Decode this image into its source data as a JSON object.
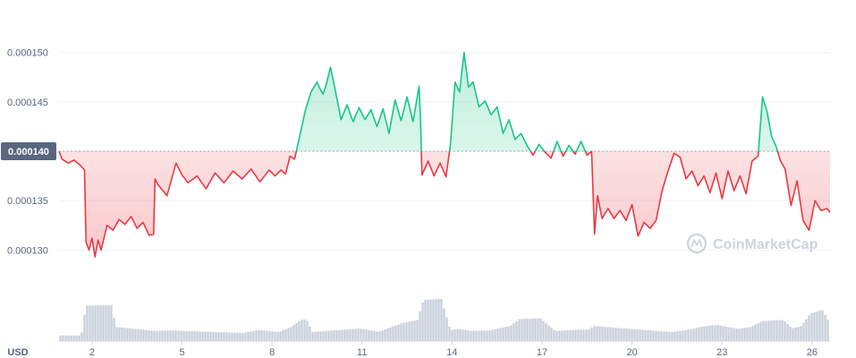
{
  "chart_data": {
    "type": "area",
    "title": "",
    "xlabel": "",
    "ylabel": "",
    "currency_label": "USD",
    "watermark": "CoinMarketCap",
    "reference_price": 0.00014,
    "reference_label": "0.000140",
    "ylim": [
      0.0001265,
      0.0001535
    ],
    "yticks": [
      {
        "value": 0.00013,
        "label": "0.000130"
      },
      {
        "value": 0.000135,
        "label": "0.000135"
      },
      {
        "value": 0.00014,
        "label": "0.000140"
      },
      {
        "value": 0.000145,
        "label": "0.000145"
      },
      {
        "value": 0.00015,
        "label": "0.000150"
      }
    ],
    "xlim": [
      0.9,
      26.6
    ],
    "xticks": [
      {
        "value": 2,
        "label": "2"
      },
      {
        "value": 5,
        "label": "5"
      },
      {
        "value": 8,
        "label": "8"
      },
      {
        "value": 11,
        "label": "11"
      },
      {
        "value": 14,
        "label": "14"
      },
      {
        "value": 17,
        "label": "17"
      },
      {
        "value": 20,
        "label": "20"
      },
      {
        "value": 23,
        "label": "23"
      },
      {
        "value": 26,
        "label": "26"
      }
    ],
    "colors": {
      "up": "#16c784",
      "down": "#ea3943"
    },
    "price_series": {
      "name": "Price",
      "x": [
        0.9,
        1.0,
        1.2,
        1.4,
        1.6,
        1.75,
        1.8,
        1.9,
        2.0,
        2.1,
        2.2,
        2.3,
        2.5,
        2.7,
        2.9,
        3.1,
        3.3,
        3.5,
        3.7,
        3.9,
        4.05,
        4.1,
        4.2,
        4.5,
        4.8,
        5.0,
        5.2,
        5.5,
        5.8,
        6.1,
        6.4,
        6.7,
        7.0,
        7.3,
        7.6,
        7.9,
        8.1,
        8.3,
        8.45,
        8.6,
        8.75,
        8.9,
        9.1,
        9.3,
        9.5,
        9.6,
        9.7,
        9.8,
        9.95,
        10.1,
        10.3,
        10.5,
        10.7,
        10.9,
        11.1,
        11.3,
        11.5,
        11.7,
        11.9,
        12.1,
        12.3,
        12.5,
        12.7,
        12.9,
        12.95,
        13.0,
        13.2,
        13.4,
        13.6,
        13.8,
        13.95,
        14.1,
        14.25,
        14.4,
        14.55,
        14.7,
        14.9,
        15.1,
        15.3,
        15.5,
        15.7,
        15.9,
        16.1,
        16.3,
        16.5,
        16.7,
        16.9,
        17.1,
        17.3,
        17.5,
        17.7,
        17.9,
        18.1,
        18.3,
        18.5,
        18.65,
        18.75,
        18.85,
        19.0,
        19.2,
        19.4,
        19.6,
        19.8,
        20.0,
        20.2,
        20.4,
        20.6,
        20.8,
        21.0,
        21.2,
        21.4,
        21.6,
        21.8,
        22.0,
        22.2,
        22.4,
        22.6,
        22.8,
        23.0,
        23.2,
        23.4,
        23.6,
        23.8,
        24.0,
        24.2,
        24.35,
        24.5,
        24.65,
        24.8,
        24.95,
        25.1,
        25.3,
        25.5,
        25.7,
        25.9,
        26.1,
        26.3,
        26.5,
        26.6
      ],
      "y": [
        0.00014,
        0.0001392,
        0.0001388,
        0.0001391,
        0.0001386,
        0.0001381,
        0.0001308,
        0.00013,
        0.0001312,
        0.0001293,
        0.000131,
        0.00013,
        0.0001325,
        0.000132,
        0.0001331,
        0.0001326,
        0.0001334,
        0.0001322,
        0.0001328,
        0.0001315,
        0.0001316,
        0.0001372,
        0.0001366,
        0.0001355,
        0.0001388,
        0.0001376,
        0.0001368,
        0.0001375,
        0.0001362,
        0.0001378,
        0.0001368,
        0.000138,
        0.0001372,
        0.0001382,
        0.0001369,
        0.0001381,
        0.0001375,
        0.0001381,
        0.0001377,
        0.0001395,
        0.0001392,
        0.0001412,
        0.000144,
        0.000146,
        0.000147,
        0.0001463,
        0.0001458,
        0.0001467,
        0.0001485,
        0.0001463,
        0.0001432,
        0.0001447,
        0.000143,
        0.0001444,
        0.0001432,
        0.0001442,
        0.0001425,
        0.0001443,
        0.0001418,
        0.0001452,
        0.0001431,
        0.0001455,
        0.000143,
        0.0001466,
        0.000143,
        0.0001376,
        0.000139,
        0.0001375,
        0.0001388,
        0.0001374,
        0.0001408,
        0.000147,
        0.000146,
        0.00015,
        0.0001465,
        0.000147,
        0.0001445,
        0.0001451,
        0.0001437,
        0.0001445,
        0.0001418,
        0.0001432,
        0.0001412,
        0.0001418,
        0.0001406,
        0.0001396,
        0.0001407,
        0.0001399,
        0.0001393,
        0.000141,
        0.0001395,
        0.0001406,
        0.0001397,
        0.000141,
        0.0001396,
        0.00014,
        0.0001316,
        0.0001355,
        0.0001332,
        0.0001342,
        0.0001332,
        0.000134,
        0.000133,
        0.0001346,
        0.0001314,
        0.0001328,
        0.0001322,
        0.000133,
        0.000136,
        0.000138,
        0.0001398,
        0.0001394,
        0.0001372,
        0.000138,
        0.0001365,
        0.0001375,
        0.0001358,
        0.0001378,
        0.0001352,
        0.000138,
        0.000136,
        0.0001375,
        0.0001357,
        0.000139,
        0.0001395,
        0.0001455,
        0.000144,
        0.0001415,
        0.0001405,
        0.000139,
        0.0001382,
        0.0001345,
        0.000137,
        0.000133,
        0.000132,
        0.000135,
        0.000134,
        0.0001342,
        0.0001338
      ]
    },
    "volume_series": {
      "name": "Volume",
      "x": [
        0.9,
        1.6,
        1.75,
        2.6,
        2.75,
        4.1,
        4.6,
        7.0,
        7.5,
        8.2,
        8.6,
        8.9,
        9.1,
        9.3,
        10.9,
        11.5,
        12.3,
        12.5,
        12.8,
        13.0,
        13.6,
        13.9,
        14.2,
        14.6,
        15.2,
        15.9,
        16.2,
        16.9,
        17.4,
        18.0,
        18.5,
        18.7,
        19.5,
        20.4,
        20.8,
        21.3,
        21.8,
        22.4,
        22.8,
        23.5,
        23.9,
        24.3,
        25.0,
        25.3,
        25.6,
        25.9,
        26.3,
        26.6
      ],
      "y": [
        0.11,
        0.11,
        0.7,
        0.72,
        0.28,
        0.2,
        0.21,
        0.16,
        0.22,
        0.18,
        0.28,
        0.42,
        0.44,
        0.18,
        0.25,
        0.18,
        0.36,
        0.38,
        0.42,
        0.82,
        0.84,
        0.22,
        0.24,
        0.2,
        0.21,
        0.3,
        0.44,
        0.45,
        0.2,
        0.22,
        0.23,
        0.3,
        0.26,
        0.22,
        0.2,
        0.18,
        0.22,
        0.3,
        0.32,
        0.24,
        0.28,
        0.4,
        0.42,
        0.25,
        0.3,
        0.55,
        0.62,
        0.3
      ],
      "max_height_fraction": 1.0
    }
  }
}
